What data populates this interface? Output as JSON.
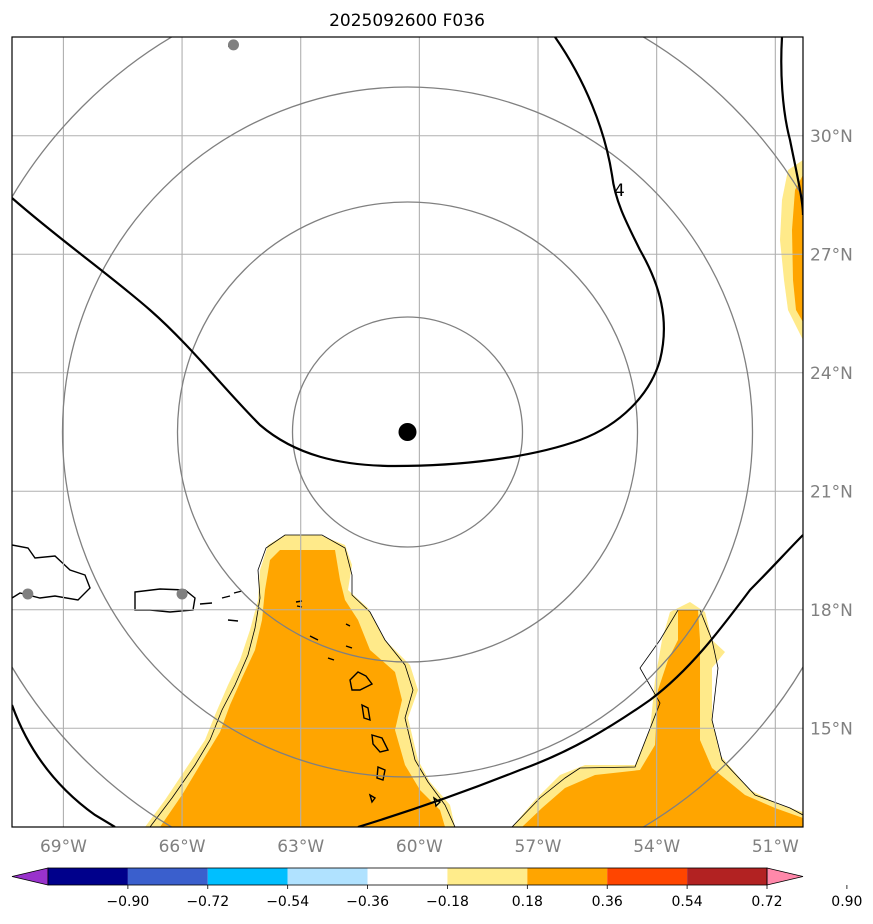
{
  "title": "2025092600 F036",
  "map": {
    "lon_range": [
      -70.3,
      -50.3
    ],
    "lat_range": [
      12.5,
      32.5
    ],
    "lon_ticks": [
      {
        "value": -69,
        "label": "69°W"
      },
      {
        "value": -66,
        "label": "66°W"
      },
      {
        "value": -63,
        "label": "63°W"
      },
      {
        "value": -60,
        "label": "60°W"
      },
      {
        "value": -57,
        "label": "57°W"
      },
      {
        "value": -54,
        "label": "54°W"
      },
      {
        "value": -51,
        "label": "51°W"
      }
    ],
    "lat_ticks": [
      {
        "value": 30,
        "label": "30°N"
      },
      {
        "value": 27,
        "label": "27°N"
      },
      {
        "value": 24,
        "label": "24°N"
      },
      {
        "value": 21,
        "label": "21°N"
      },
      {
        "value": 18,
        "label": "18°N"
      },
      {
        "value": 15,
        "label": "15°N"
      }
    ],
    "storm_center": {
      "lon": -60.3,
      "lat": 22.5
    },
    "range_rings": 4,
    "station_markers": [
      {
        "lon": -64.7,
        "lat": 32.3
      },
      {
        "lon": -69.9,
        "lat": 18.4
      },
      {
        "lon": -66.0,
        "lat": 18.4
      }
    ],
    "contour_label": "4",
    "colors": {
      "ring": "#808080",
      "grid": "#b0b0b0",
      "contour": "#000000",
      "fill_light": "#ffea8a",
      "fill_strong": "#ffa500",
      "marker": "#808080",
      "center": "#000000"
    }
  },
  "colorbar": {
    "colors": [
      "#9932cc",
      "#00008b",
      "#3a5fcd",
      "#00bfff",
      "#b0e2ff",
      "#ffffff",
      "#ffec8b",
      "#ffa500",
      "#ff4500",
      "#b22222",
      "#ff88aa"
    ],
    "labels": [
      "−0.90",
      "−0.72",
      "−0.54",
      "−0.36",
      "−0.18",
      "0.18",
      "0.36",
      "0.54",
      "0.72",
      "0.90"
    ]
  }
}
